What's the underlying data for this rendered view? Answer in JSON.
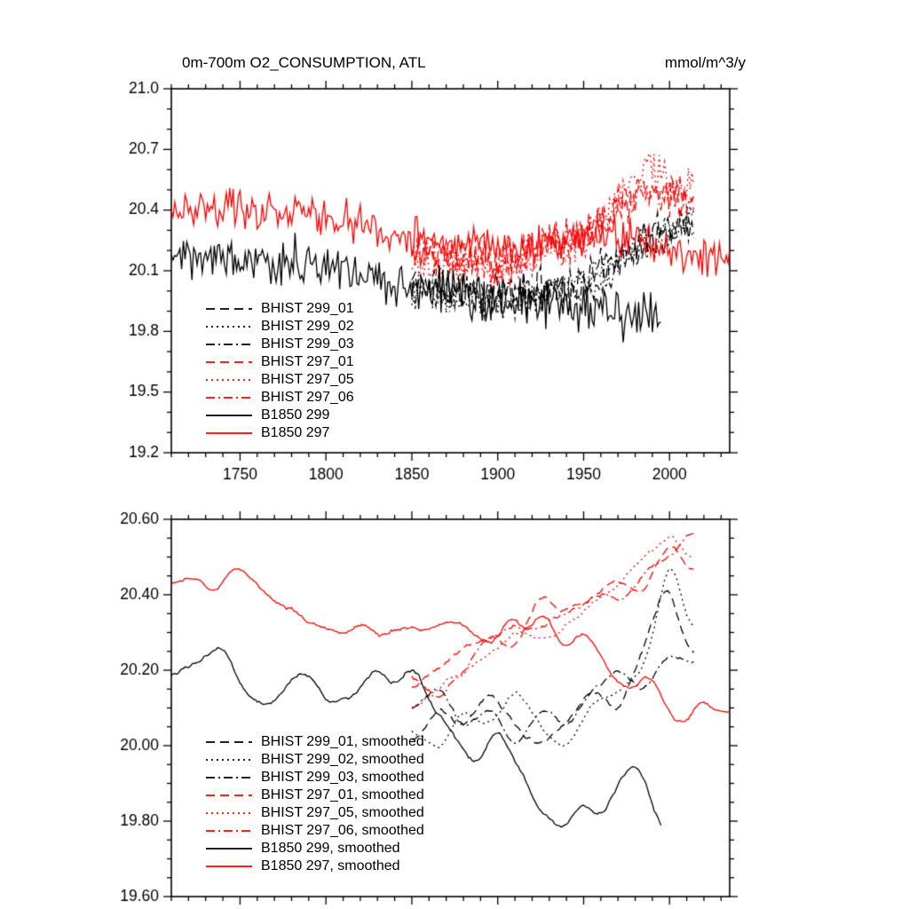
{
  "chart_data": [
    {
      "type": "line",
      "title": "0m-700m O2_CONSUMPTION, ATL",
      "units_label": "mmol/m^3/y",
      "x_axis": {
        "min": 1710,
        "max": 2035,
        "major_step": 50,
        "minor_step": 10,
        "show_labels": true,
        "tick_labels": [
          "1750",
          "1800",
          "1850",
          "1900",
          "1950",
          "2000"
        ]
      },
      "y_axis": {
        "min": 19.2,
        "max": 21.0,
        "major_step": 0.3,
        "minor_step": 0.1,
        "decimals": 1,
        "tick_labels": [
          "19.2",
          "19.5",
          "19.8",
          "20.1",
          "20.4",
          "20.7",
          "21.0"
        ]
      },
      "series": [
        {
          "legend": "BHIST 299_01",
          "color": "#000000",
          "dash": "dashed",
          "x_start": 1850,
          "x_end": 2014,
          "trend": [
            [
              1850,
              20.05
            ],
            [
              1900,
              20.0
            ],
            [
              1950,
              20.05
            ],
            [
              1990,
              20.3
            ],
            [
              2014,
              20.35
            ]
          ],
          "noise": 0.11,
          "smooth": 1,
          "seed": 11
        },
        {
          "legend": "BHIST 299_02",
          "color": "#000000",
          "dash": "dotted",
          "x_start": 1850,
          "x_end": 2014,
          "trend": [
            [
              1850,
              20.0
            ],
            [
              1900,
              19.95
            ],
            [
              1950,
              20.05
            ],
            [
              1990,
              20.25
            ],
            [
              2014,
              20.4
            ]
          ],
          "noise": 0.11,
          "smooth": 1,
          "seed": 12
        },
        {
          "legend": "BHIST 299_03",
          "color": "#000000",
          "dash": "dashdot",
          "x_start": 1850,
          "x_end": 2014,
          "trend": [
            [
              1850,
              20.05
            ],
            [
              1900,
              19.95
            ],
            [
              1950,
              20.0
            ],
            [
              1990,
              20.25
            ],
            [
              2014,
              20.3
            ]
          ],
          "noise": 0.11,
          "smooth": 1,
          "seed": 13
        },
        {
          "legend": "BHIST 297_01",
          "color": "#ff0000",
          "dash": "dashed",
          "x_start": 1850,
          "x_end": 2014,
          "trend": [
            [
              1850,
              20.2
            ],
            [
              1900,
              20.15
            ],
            [
              1950,
              20.25
            ],
            [
              1985,
              20.5
            ],
            [
              2014,
              20.45
            ]
          ],
          "noise": 0.12,
          "smooth": 1,
          "seed": 14
        },
        {
          "legend": "BHIST 297_05",
          "color": "#ff0000",
          "dash": "dotted",
          "x_start": 1850,
          "x_end": 2014,
          "trend": [
            [
              1850,
              20.15
            ],
            [
              1900,
              20.1
            ],
            [
              1950,
              20.25
            ],
            [
              1985,
              20.6
            ],
            [
              2014,
              20.5
            ]
          ],
          "noise": 0.12,
          "smooth": 1,
          "seed": 15
        },
        {
          "legend": "BHIST 297_06",
          "color": "#ff0000",
          "dash": "dashdot",
          "x_start": 1850,
          "x_end": 2014,
          "trend": [
            [
              1850,
              20.2
            ],
            [
              1900,
              20.1
            ],
            [
              1950,
              20.3
            ],
            [
              1985,
              20.5
            ],
            [
              2014,
              20.45
            ]
          ],
          "noise": 0.12,
          "smooth": 1,
          "seed": 16
        },
        {
          "legend": "B1850 299",
          "color": "#000000",
          "dash": "solid",
          "x_start": 1710,
          "x_end": 1995,
          "trend": [
            [
              1710,
              20.2
            ],
            [
              1750,
              20.15
            ],
            [
              1800,
              20.15
            ],
            [
              1850,
              20.0
            ],
            [
              1900,
              19.95
            ],
            [
              1950,
              19.9
            ],
            [
              1995,
              19.85
            ]
          ],
          "noise": 0.15,
          "smooth": 1,
          "seed": 17
        },
        {
          "legend": "B1850 297",
          "color": "#ff0000",
          "dash": "solid",
          "x_start": 1710,
          "x_end": 2035,
          "trend": [
            [
              1710,
              20.4
            ],
            [
              1760,
              20.4
            ],
            [
              1810,
              20.35
            ],
            [
              1860,
              20.25
            ],
            [
              1910,
              20.2
            ],
            [
              1960,
              20.3
            ],
            [
              2000,
              20.2
            ],
            [
              2035,
              20.15
            ]
          ],
          "noise": 0.12,
          "smooth": 1,
          "seed": 18
        }
      ]
    },
    {
      "type": "line",
      "title": "",
      "units_label": "",
      "x_axis": {
        "min": 1710,
        "max": 2035,
        "major_step": 50,
        "minor_step": 10,
        "show_labels": false,
        "tick_labels": []
      },
      "y_axis": {
        "min": 19.6,
        "max": 20.6,
        "major_step": 0.2,
        "minor_step": 0.05,
        "decimals": 2,
        "tick_labels": [
          "19.60",
          "19.80",
          "20.00",
          "20.20",
          "20.40",
          "20.60"
        ]
      },
      "series": [
        {
          "legend": "BHIST 299_01, smoothed",
          "color": "#000000",
          "dash": "dashed",
          "x_start": 1850,
          "x_end": 2014,
          "trend": [
            [
              1850,
              20.0
            ],
            [
              1865,
              20.1
            ],
            [
              1880,
              20.05
            ],
            [
              1895,
              20.15
            ],
            [
              1910,
              20.05
            ],
            [
              1925,
              20.0
            ],
            [
              1940,
              20.05
            ],
            [
              1955,
              20.15
            ],
            [
              1970,
              20.1
            ],
            [
              1985,
              20.25
            ],
            [
              1998,
              20.45
            ],
            [
              2008,
              20.3
            ],
            [
              2014,
              20.22
            ]
          ],
          "noise": 0.04,
          "smooth": 9,
          "seed": 21
        },
        {
          "legend": "BHIST 299_02, smoothed",
          "color": "#000000",
          "dash": "dotted",
          "x_start": 1850,
          "x_end": 2014,
          "trend": [
            [
              1850,
              20.05
            ],
            [
              1865,
              20.0
            ],
            [
              1880,
              20.1
            ],
            [
              1895,
              20.05
            ],
            [
              1910,
              20.15
            ],
            [
              1925,
              20.05
            ],
            [
              1940,
              20.0
            ],
            [
              1955,
              20.1
            ],
            [
              1970,
              20.15
            ],
            [
              1985,
              20.2
            ],
            [
              2000,
              20.5
            ],
            [
              2014,
              20.28
            ]
          ],
          "noise": 0.04,
          "smooth": 9,
          "seed": 22
        },
        {
          "legend": "BHIST 299_03, smoothed",
          "color": "#000000",
          "dash": "dashdot",
          "x_start": 1850,
          "x_end": 2014,
          "trend": [
            [
              1850,
              20.1
            ],
            [
              1865,
              20.15
            ],
            [
              1880,
              20.05
            ],
            [
              1895,
              20.1
            ],
            [
              1910,
              20.0
            ],
            [
              1925,
              20.1
            ],
            [
              1940,
              20.05
            ],
            [
              1955,
              20.15
            ],
            [
              1970,
              20.2
            ],
            [
              1985,
              20.15
            ],
            [
              2000,
              20.25
            ],
            [
              2014,
              20.22
            ]
          ],
          "noise": 0.04,
          "smooth": 9,
          "seed": 23
        },
        {
          "legend": "BHIST 297_01, smoothed",
          "color": "#ff0000",
          "dash": "dashed",
          "x_start": 1850,
          "x_end": 2014,
          "trend": [
            [
              1850,
              20.15
            ],
            [
              1865,
              20.2
            ],
            [
              1880,
              20.25
            ],
            [
              1895,
              20.3
            ],
            [
              1910,
              20.25
            ],
            [
              1925,
              20.4
            ],
            [
              1940,
              20.35
            ],
            [
              1955,
              20.4
            ],
            [
              1970,
              20.45
            ],
            [
              1985,
              20.4
            ],
            [
              2000,
              20.55
            ],
            [
              2014,
              20.45
            ]
          ],
          "noise": 0.04,
          "smooth": 9,
          "seed": 24
        },
        {
          "legend": "BHIST 297_05, smoothed",
          "color": "#ff0000",
          "dash": "dotted",
          "x_start": 1850,
          "x_end": 2014,
          "trend": [
            [
              1850,
              20.1
            ],
            [
              1865,
              20.15
            ],
            [
              1880,
              20.2
            ],
            [
              1895,
              20.25
            ],
            [
              1910,
              20.3
            ],
            [
              1925,
              20.28
            ],
            [
              1940,
              20.32
            ],
            [
              1955,
              20.38
            ],
            [
              1970,
              20.42
            ],
            [
              1985,
              20.5
            ],
            [
              2000,
              20.55
            ],
            [
              2014,
              20.5
            ]
          ],
          "noise": 0.04,
          "smooth": 9,
          "seed": 25
        },
        {
          "legend": "BHIST 297_06, smoothed",
          "color": "#ff0000",
          "dash": "dashdot",
          "x_start": 1850,
          "x_end": 2014,
          "trend": [
            [
              1850,
              20.18
            ],
            [
              1865,
              20.12
            ],
            [
              1880,
              20.2
            ],
            [
              1895,
              20.28
            ],
            [
              1910,
              20.32
            ],
            [
              1925,
              20.3
            ],
            [
              1940,
              20.35
            ],
            [
              1955,
              20.4
            ],
            [
              1970,
              20.38
            ],
            [
              1985,
              20.45
            ],
            [
              2000,
              20.5
            ],
            [
              2014,
              20.58
            ]
          ],
          "noise": 0.04,
          "smooth": 9,
          "seed": 26
        },
        {
          "legend": "B1850 299, smoothed",
          "color": "#000000",
          "dash": "solid",
          "x_start": 1710,
          "x_end": 1995,
          "trend": [
            [
              1710,
              20.2
            ],
            [
              1725,
              20.22
            ],
            [
              1740,
              20.28
            ],
            [
              1752,
              20.15
            ],
            [
              1765,
              20.1
            ],
            [
              1778,
              20.17
            ],
            [
              1790,
              20.2
            ],
            [
              1802,
              20.1
            ],
            [
              1815,
              20.14
            ],
            [
              1828,
              20.2
            ],
            [
              1840,
              20.16
            ],
            [
              1852,
              20.22
            ],
            [
              1862,
              20.1
            ],
            [
              1875,
              20.02
            ],
            [
              1888,
              19.95
            ],
            [
              1900,
              20.05
            ],
            [
              1912,
              19.95
            ],
            [
              1925,
              19.82
            ],
            [
              1938,
              19.78
            ],
            [
              1950,
              19.85
            ],
            [
              1960,
              19.8
            ],
            [
              1972,
              19.92
            ],
            [
              1982,
              19.95
            ],
            [
              1990,
              19.85
            ],
            [
              1995,
              19.76
            ]
          ],
          "noise": 0.04,
          "smooth": 9,
          "seed": 27
        },
        {
          "legend": "B1850 297, smoothed",
          "color": "#ff0000",
          "dash": "solid",
          "x_start": 1710,
          "x_end": 2035,
          "trend": [
            [
              1710,
              20.42
            ],
            [
              1722,
              20.45
            ],
            [
              1735,
              20.4
            ],
            [
              1748,
              20.48
            ],
            [
              1760,
              20.42
            ],
            [
              1772,
              20.38
            ],
            [
              1785,
              20.34
            ],
            [
              1798,
              20.32
            ],
            [
              1810,
              20.3
            ],
            [
              1822,
              20.32
            ],
            [
              1835,
              20.29
            ],
            [
              1848,
              20.33
            ],
            [
              1860,
              20.3
            ],
            [
              1872,
              20.33
            ],
            [
              1885,
              20.3
            ],
            [
              1898,
              20.27
            ],
            [
              1908,
              20.35
            ],
            [
              1918,
              20.3
            ],
            [
              1928,
              20.36
            ],
            [
              1938,
              20.25
            ],
            [
              1948,
              20.3
            ],
            [
              1958,
              20.25
            ],
            [
              1968,
              20.18
            ],
            [
              1978,
              20.15
            ],
            [
              1988,
              20.2
            ],
            [
              1998,
              20.1
            ],
            [
              2008,
              20.05
            ],
            [
              2018,
              20.12
            ],
            [
              2028,
              20.08
            ],
            [
              2035,
              20.1
            ]
          ],
          "noise": 0.04,
          "smooth": 9,
          "seed": 28
        }
      ]
    }
  ]
}
